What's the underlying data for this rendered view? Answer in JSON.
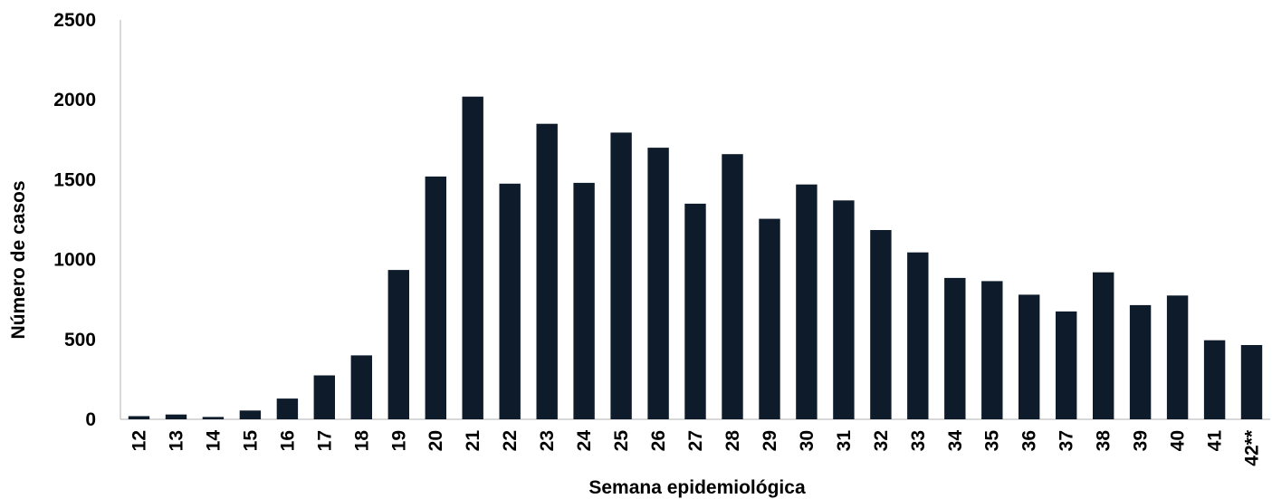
{
  "chart_data": {
    "type": "bar",
    "title": "",
    "xlabel": "Semana epidemiológica",
    "ylabel": "Número de casos",
    "ylim": [
      0,
      2500
    ],
    "yticks": [
      0,
      500,
      1000,
      1500,
      2000,
      2500
    ],
    "grid": false,
    "legend": "none",
    "categories": [
      "12",
      "13",
      "14",
      "15",
      "16",
      "17",
      "18",
      "19",
      "20",
      "21",
      "22",
      "23",
      "24",
      "25",
      "26",
      "27",
      "28",
      "29",
      "30",
      "31",
      "32",
      "33",
      "34",
      "35",
      "36",
      "37",
      "38",
      "39",
      "40",
      "41",
      "42**"
    ],
    "values": [
      20,
      30,
      15,
      55,
      130,
      275,
      400,
      935,
      1520,
      2020,
      1475,
      1850,
      1480,
      1795,
      1700,
      1350,
      1660,
      1255,
      1470,
      1370,
      1185,
      1045,
      885,
      865,
      780,
      675,
      920,
      715,
      775,
      495,
      465
    ],
    "bar_color": "#0d1b2a"
  }
}
